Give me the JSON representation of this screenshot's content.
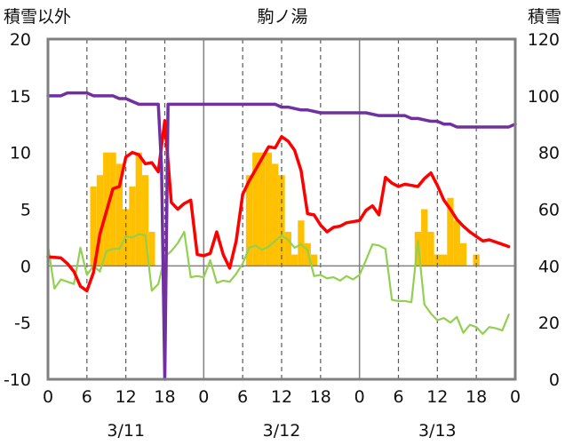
{
  "chart_data": {
    "type": "combo",
    "title": "駒ノ湯",
    "left_axis": {
      "label": "積雪以外",
      "ylim": [
        -10,
        20
      ],
      "ticks": [
        "20",
        "15",
        "10",
        "5",
        "0",
        "-5",
        "-10"
      ]
    },
    "right_axis": {
      "label": "積雪",
      "ylim": [
        0,
        120
      ],
      "ticks": [
        "120",
        "100",
        "80",
        "60",
        "40",
        "20",
        "0"
      ]
    },
    "x_axis": {
      "hour_labels": [
        "0",
        "6",
        "12",
        "18",
        "0",
        "6",
        "12",
        "18",
        "0",
        "6",
        "12",
        "18",
        "0"
      ],
      "hour_positions": [
        0,
        6,
        12,
        18,
        24,
        30,
        36,
        42,
        48,
        54,
        60,
        66,
        72
      ],
      "date_labels": [
        "3/11",
        "3/12",
        "3/13"
      ],
      "date_positions": [
        12,
        36,
        60
      ],
      "range": [
        0,
        72
      ]
    },
    "grid": {
      "dashed_hours": [
        6,
        12,
        18,
        30,
        36,
        42,
        54,
        60,
        66
      ],
      "solid_hours": [
        24,
        48
      ]
    },
    "colors": {
      "bars": "#FFC000",
      "red_line": "#FF0000",
      "green_line": "#92D050",
      "purple_line": "#7030A0",
      "frame": "#808080"
    },
    "bars": {
      "axis": "left",
      "hours": [
        7,
        8,
        9,
        10,
        11,
        12,
        13,
        14,
        15,
        16,
        31,
        32,
        33,
        34,
        35,
        36,
        37,
        38,
        39,
        40,
        41,
        57,
        58,
        59,
        60,
        61,
        62,
        63,
        64,
        66
      ],
      "values": [
        7,
        8,
        10,
        10,
        9,
        5,
        7,
        10,
        8,
        3,
        8,
        10,
        10,
        10,
        9,
        8,
        3,
        1,
        4,
        2,
        1,
        3,
        5,
        3,
        1,
        1,
        6,
        4,
        2,
        1
      ]
    },
    "series": [
      {
        "axis": "left",
        "color": "#FF0000",
        "x": [
          0,
          2,
          3,
          4,
          5,
          6,
          7,
          8,
          9,
          10,
          11,
          12,
          13,
          14,
          15,
          16,
          17,
          18,
          19,
          20,
          21,
          22,
          23,
          24,
          25,
          26,
          27,
          28,
          29,
          30,
          31,
          32,
          33,
          34,
          35,
          36,
          37,
          38,
          39,
          40,
          41,
          42,
          43,
          44,
          45,
          46,
          47,
          48,
          49,
          50,
          51,
          52,
          53,
          54,
          55,
          56,
          57,
          58,
          59,
          60,
          61,
          62,
          63,
          64,
          65,
          66,
          67,
          68,
          69,
          70,
          71
        ],
        "y": [
          0.8,
          0.7,
          0.2,
          -0.5,
          -1.8,
          -2.2,
          -0.6,
          2.8,
          4.8,
          6.8,
          7.0,
          9.6,
          10.0,
          9.8,
          9.0,
          9.1,
          8.3,
          12.8,
          5.6,
          5.0,
          5.5,
          5.8,
          1.0,
          0.9,
          1.1,
          3.0,
          1.0,
          -0.2,
          2.2,
          6.3,
          7.5,
          8.5,
          9.5,
          10.5,
          10.4,
          11.4,
          11.0,
          10.2,
          8.4,
          4.6,
          4.5,
          3.6,
          3.0,
          3.4,
          3.5,
          3.8,
          3.9,
          4.0,
          4.9,
          5.3,
          4.5,
          7.8,
          7.3,
          7.0,
          7.2,
          7.1,
          7.0,
          7.7,
          8.2,
          7.1,
          5.8,
          5.0,
          4.1,
          3.5,
          3.0,
          2.6,
          2.2,
          2.3,
          2.1,
          1.9,
          1.7
        ]
      },
      {
        "axis": "left",
        "color": "#92D050",
        "x": [
          0,
          1,
          2,
          3,
          4,
          5,
          6,
          7,
          8,
          9,
          10,
          11,
          12,
          13,
          14,
          15,
          16,
          17,
          18,
          19,
          20,
          21,
          22,
          23,
          24,
          25,
          26,
          27,
          28,
          29,
          30,
          31,
          32,
          33,
          34,
          35,
          36,
          37,
          38,
          39,
          40,
          41,
          42,
          43,
          44,
          45,
          46,
          47,
          48,
          49,
          50,
          51,
          52,
          53,
          54,
          55,
          56,
          57,
          58,
          59,
          60,
          61,
          62,
          63,
          64,
          65,
          66,
          67,
          68,
          69,
          70,
          71
        ],
        "y": [
          1.8,
          -2.0,
          -1.2,
          -1.4,
          -1.6,
          1.6,
          -0.8,
          0.0,
          -0.5,
          1.3,
          1.5,
          1.5,
          2.6,
          2.5,
          2.8,
          2.7,
          -2.2,
          -1.6,
          0.8,
          1.3,
          2.0,
          3.0,
          -1.0,
          -0.9,
          -1.0,
          0.5,
          -1.5,
          -1.3,
          -1.4,
          -0.7,
          0.2,
          1.6,
          1.8,
          1.4,
          1.7,
          2.2,
          2.7,
          2.3,
          1.6,
          1.9,
          1.4,
          -0.9,
          -0.8,
          -1.1,
          -1.0,
          -1.3,
          -0.9,
          -1.2,
          -0.8,
          0.5,
          1.9,
          1.8,
          1.5,
          -3.0,
          -3.1,
          -3.1,
          -3.2,
          2.2,
          -3.4,
          -4.2,
          -4.8,
          -4.6,
          -5.0,
          -4.5,
          -5.9,
          -5.2,
          -5.4,
          -6.0,
          -5.4,
          -5.5,
          -5.7,
          -4.3
        ]
      },
      {
        "axis": "right",
        "color": "#7030A0",
        "x": [
          0,
          2,
          3,
          6,
          7,
          10,
          11,
          12,
          13,
          14,
          17,
          17.5,
          18,
          18.5,
          22,
          35,
          36,
          37,
          39,
          40,
          42,
          46,
          49,
          51,
          55,
          56,
          57,
          59,
          60,
          61,
          62,
          63,
          66,
          71,
          72
        ],
        "y": [
          100,
          100,
          101,
          101,
          100,
          100,
          99,
          99,
          98,
          97,
          97,
          75,
          0,
          97,
          97,
          97,
          96,
          96,
          95,
          95,
          94,
          94,
          94,
          93,
          93,
          92,
          92,
          91,
          91,
          90,
          90,
          89,
          89,
          89,
          90
        ]
      }
    ]
  }
}
